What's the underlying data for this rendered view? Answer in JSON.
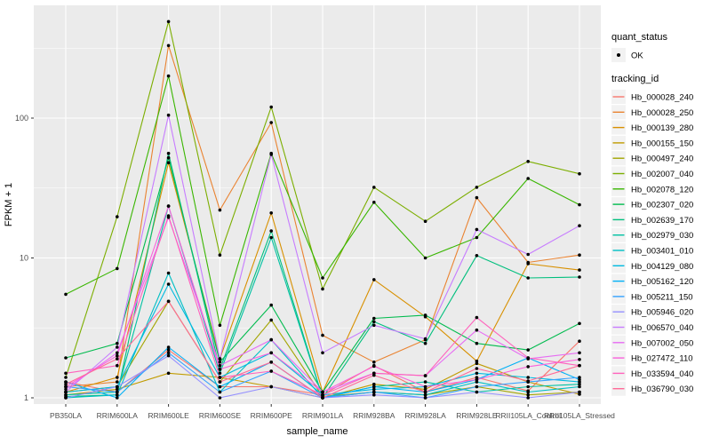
{
  "chart_data": {
    "type": "line",
    "title": "",
    "xlabel": "sample_name",
    "ylabel": "FPKM + 1",
    "y_scale": "log10",
    "y_ticks": [
      1,
      10,
      100
    ],
    "y_minor_ticks": [
      3.162,
      31.62,
      316.2
    ],
    "ylim": [
      1,
      620
    ],
    "grid": "on",
    "legend_position": "right",
    "panel_bg": "#EBEBEB",
    "grid_color": "#FFFFFF",
    "tick_text_color": "#4D4D4D",
    "axis_title_color": "#000000",
    "point_color": "#000000",
    "categories": [
      "PB350LA",
      "RRIM600LA",
      "RRIM600LE",
      "RRIM600SE",
      "RRIM600PE",
      "RRIM901LA",
      "RRIM928BA",
      "RRIM928LA",
      "RRIM928LE",
      "RRII105LA_Control",
      "RRII105LA_Stressed"
    ],
    "legend": {
      "quant_title": "quant_status",
      "quant_items": [
        {
          "label": "OK",
          "marker": "point"
        }
      ],
      "series_title": "tracking_id"
    },
    "series": [
      {
        "name": "Hb_000028_240",
        "color": "#F8766D",
        "values": [
          1.3,
          1.1,
          2.2,
          1.2,
          1.2,
          1.05,
          1.7,
          1.1,
          1.4,
          1.12,
          2.54
        ]
      },
      {
        "name": "Hb_000028_250",
        "color": "#EA8331",
        "values": [
          1.2,
          1.3,
          330,
          22,
          93,
          2.8,
          1.8,
          2.6,
          27,
          9.3,
          10.5
        ]
      },
      {
        "name": "Hb_000139_280",
        "color": "#D89000",
        "values": [
          1.1,
          1.4,
          48,
          1.9,
          21,
          1.1,
          7.0,
          3.8,
          1.83,
          9.1,
          8.2
        ]
      },
      {
        "name": "Hb_000155_150",
        "color": "#C09B00",
        "values": [
          1.05,
          1.15,
          1.5,
          1.4,
          1.2,
          1.0,
          1.25,
          1.15,
          1.76,
          1.3,
          1.06
        ]
      },
      {
        "name": "Hb_000497_240",
        "color": "#A3A500",
        "values": [
          1.1,
          1.2,
          4.9,
          1.3,
          3.6,
          1.02,
          1.1,
          1.05,
          1.2,
          1.05,
          1.1
        ]
      },
      {
        "name": "Hb_002007_040",
        "color": "#7CAE00",
        "values": [
          1.4,
          19.7,
          490,
          10.5,
          120,
          6.0,
          32,
          18.3,
          32,
          49,
          40
        ]
      },
      {
        "name": "Hb_002078_120",
        "color": "#39B600",
        "values": [
          5.5,
          8.4,
          200,
          3.3,
          56,
          7.2,
          25,
          10.0,
          14,
          37,
          24
        ]
      },
      {
        "name": "Hb_002307_020",
        "color": "#00BB4E",
        "values": [
          1.93,
          2.45,
          52,
          1.8,
          4.6,
          1.1,
          3.7,
          3.9,
          2.45,
          2.2,
          3.4
        ]
      },
      {
        "name": "Hb_002639_170",
        "color": "#00BF7D",
        "values": [
          1.02,
          1.05,
          56,
          1.6,
          15.6,
          1.0,
          3.5,
          2.45,
          10.4,
          7.2,
          7.3
        ]
      },
      {
        "name": "Hb_002979_030",
        "color": "#00C1A3",
        "values": [
          1.05,
          1.1,
          23.5,
          1.5,
          14.0,
          1.0,
          1.2,
          1.3,
          1.1,
          1.2,
          1.25
        ]
      },
      {
        "name": "Hb_003401_010",
        "color": "#00BFC4",
        "values": [
          1.0,
          1.05,
          7.8,
          1.1,
          2.6,
          1.0,
          1.1,
          1.05,
          1.3,
          1.1,
          1.2
        ]
      },
      {
        "name": "Hb_004129_080",
        "color": "#00BAE0",
        "values": [
          1.1,
          1.2,
          6.5,
          1.4,
          2.1,
          1.05,
          1.15,
          1.2,
          1.5,
          1.4,
          1.3
        ]
      },
      {
        "name": "Hb_005162_120",
        "color": "#00B0F6",
        "values": [
          1.3,
          1.0,
          2.3,
          1.2,
          1.8,
          1.0,
          1.2,
          1.1,
          1.35,
          1.93,
          1.35
        ]
      },
      {
        "name": "Hb_005211_150",
        "color": "#35A2FF",
        "values": [
          1.2,
          1.1,
          2.1,
          1.1,
          1.55,
          1.0,
          1.1,
          1.0,
          1.2,
          1.3,
          1.4
        ]
      },
      {
        "name": "Hb_005946_020",
        "color": "#9590FF",
        "values": [
          1.0,
          1.2,
          2.0,
          1.0,
          1.2,
          1.0,
          1.05,
          1.0,
          1.1,
          1.0,
          1.1
        ]
      },
      {
        "name": "Hb_006570_040",
        "color": "#C77CFF",
        "values": [
          1.1,
          2.3,
          105,
          1.9,
          55,
          2.1,
          3.3,
          2.64,
          16,
          10.6,
          17
        ]
      },
      {
        "name": "Hb_007002_050",
        "color": "#E76BF3",
        "values": [
          1.15,
          2.1,
          19.5,
          1.7,
          2.6,
          1.1,
          1.5,
          1.44,
          3.05,
          1.9,
          2.1
        ]
      },
      {
        "name": "Hb_027472_110",
        "color": "#FA62DB",
        "values": [
          1.2,
          2.0,
          23.5,
          1.6,
          2.1,
          1.1,
          1.68,
          1.2,
          1.35,
          1.67,
          1.88
        ]
      },
      {
        "name": "Hb_033594_040",
        "color": "#FF62BC",
        "values": [
          1.5,
          1.7,
          20.0,
          1.4,
          1.55,
          1.05,
          1.5,
          1.44,
          3.75,
          1.93,
          1.7
        ]
      },
      {
        "name": "Hb_036790_030",
        "color": "#FF6A98",
        "values": [
          1.25,
          1.9,
          4.9,
          1.3,
          1.8,
          1.0,
          1.45,
          1.1,
          1.62,
          1.32,
          1.7
        ]
      }
    ]
  }
}
